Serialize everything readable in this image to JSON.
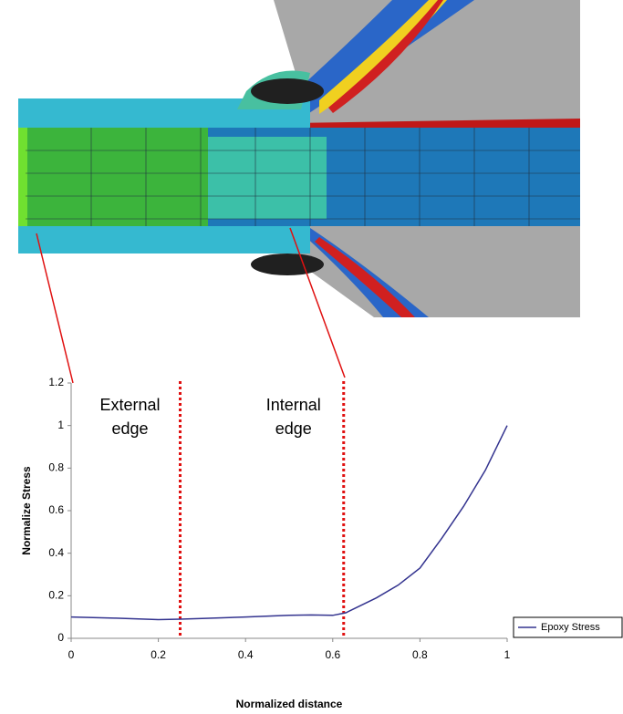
{
  "chart_data": {
    "type": "line",
    "x_label": "Normalized distance",
    "y_label": "Normalize Stress",
    "x": [
      0,
      0.1,
      0.2,
      0.25,
      0.3,
      0.4,
      0.5,
      0.55,
      0.6,
      0.63,
      0.65,
      0.7,
      0.75,
      0.8,
      0.85,
      0.9,
      0.95,
      1.0
    ],
    "series": [
      {
        "name": "Epoxy Stress",
        "color": "#33338f",
        "values": [
          0.1,
          0.095,
          0.088,
          0.09,
          0.093,
          0.1,
          0.108,
          0.11,
          0.108,
          0.12,
          0.14,
          0.19,
          0.25,
          0.33,
          0.47,
          0.62,
          0.79,
          1.0
        ]
      }
    ],
    "xlim": [
      0,
      1
    ],
    "ylim": [
      0,
      1.2
    ],
    "xticks": [
      0,
      0.2,
      0.4,
      0.6,
      0.8,
      1
    ],
    "yticks": [
      0,
      0.2,
      0.4,
      0.6,
      0.8,
      1,
      1.2
    ],
    "markers": [
      {
        "x": 0.25,
        "lines": [
          "External",
          "edge"
        ],
        "color": "#e01010"
      },
      {
        "x": 0.625,
        "lines": [
          "Internal",
          "edge"
        ],
        "color": "#e01010"
      }
    ],
    "legend": "right"
  }
}
